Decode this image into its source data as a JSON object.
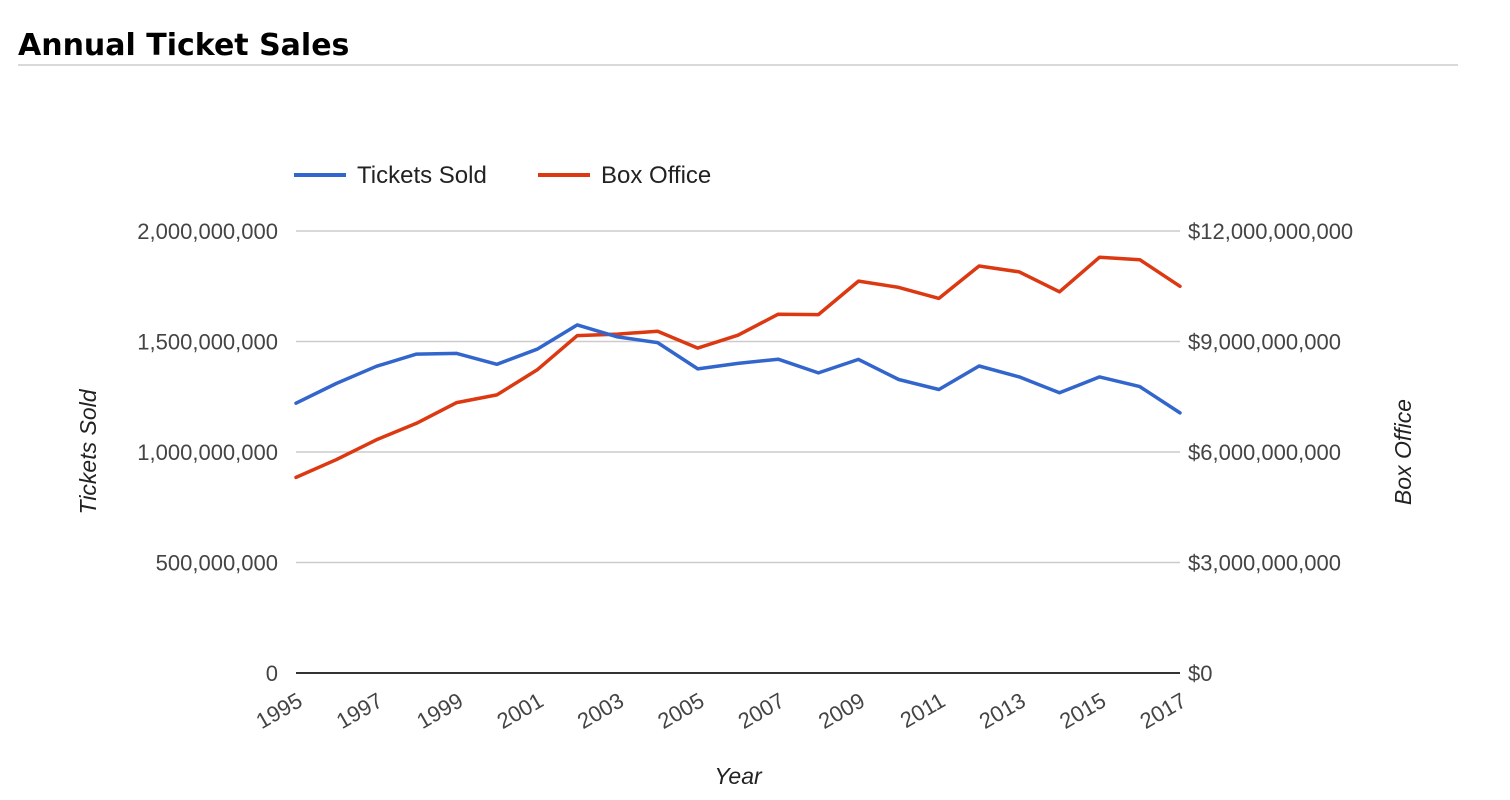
{
  "page": {
    "heading": "Annual Ticket Sales"
  },
  "chart_data": {
    "type": "line",
    "title": "Annual Ticket Sales",
    "x": [
      1995,
      1996,
      1997,
      1998,
      1999,
      2000,
      2001,
      2002,
      2003,
      2004,
      2005,
      2006,
      2007,
      2008,
      2009,
      2010,
      2011,
      2012,
      2013,
      2014,
      2015,
      2016,
      2017
    ],
    "x_tick_labels": [
      "1995",
      "1997",
      "1999",
      "2001",
      "2003",
      "2005",
      "2007",
      "2009",
      "2011",
      "2013",
      "2015",
      "2017"
    ],
    "xlabel": "Year",
    "ylabel_left": "Tickets Sold",
    "ylabel_right": "Box Office",
    "ylim_left": [
      0,
      2000000000
    ],
    "ylim_right": [
      0,
      12000000000
    ],
    "y_ticks_left": [
      "0",
      "500,000,000",
      "1,000,000,000",
      "1,500,000,000",
      "2,000,000,000"
    ],
    "y_ticks_right": [
      "$0",
      "$3,000,000,000",
      "$6,000,000,000",
      "$9,000,000,000",
      "$12,000,000,000"
    ],
    "grid": true,
    "legend_position": "top",
    "series": [
      {
        "name": "Tickets Sold",
        "axis": "left",
        "color": "#3366cc",
        "values": [
          1221000000,
          1310000000,
          1388000000,
          1443000000,
          1446000000,
          1397000000,
          1465000000,
          1575000000,
          1521000000,
          1495000000,
          1376000000,
          1401000000,
          1420000000,
          1358000000,
          1419000000,
          1328000000,
          1283000000,
          1389000000,
          1340000000,
          1268000000,
          1340000000,
          1296000000,
          1177000000
        ]
      },
      {
        "name": "Box Office",
        "axis": "right",
        "color": "#dc3912",
        "values": [
          5310000000,
          5790000000,
          6330000000,
          6780000000,
          7340000000,
          7550000000,
          8230000000,
          9160000000,
          9200000000,
          9280000000,
          8820000000,
          9170000000,
          9740000000,
          9730000000,
          10640000000,
          10470000000,
          10170000000,
          11050000000,
          10890000000,
          10350000000,
          11290000000,
          11220000000,
          10500000000
        ]
      }
    ]
  }
}
